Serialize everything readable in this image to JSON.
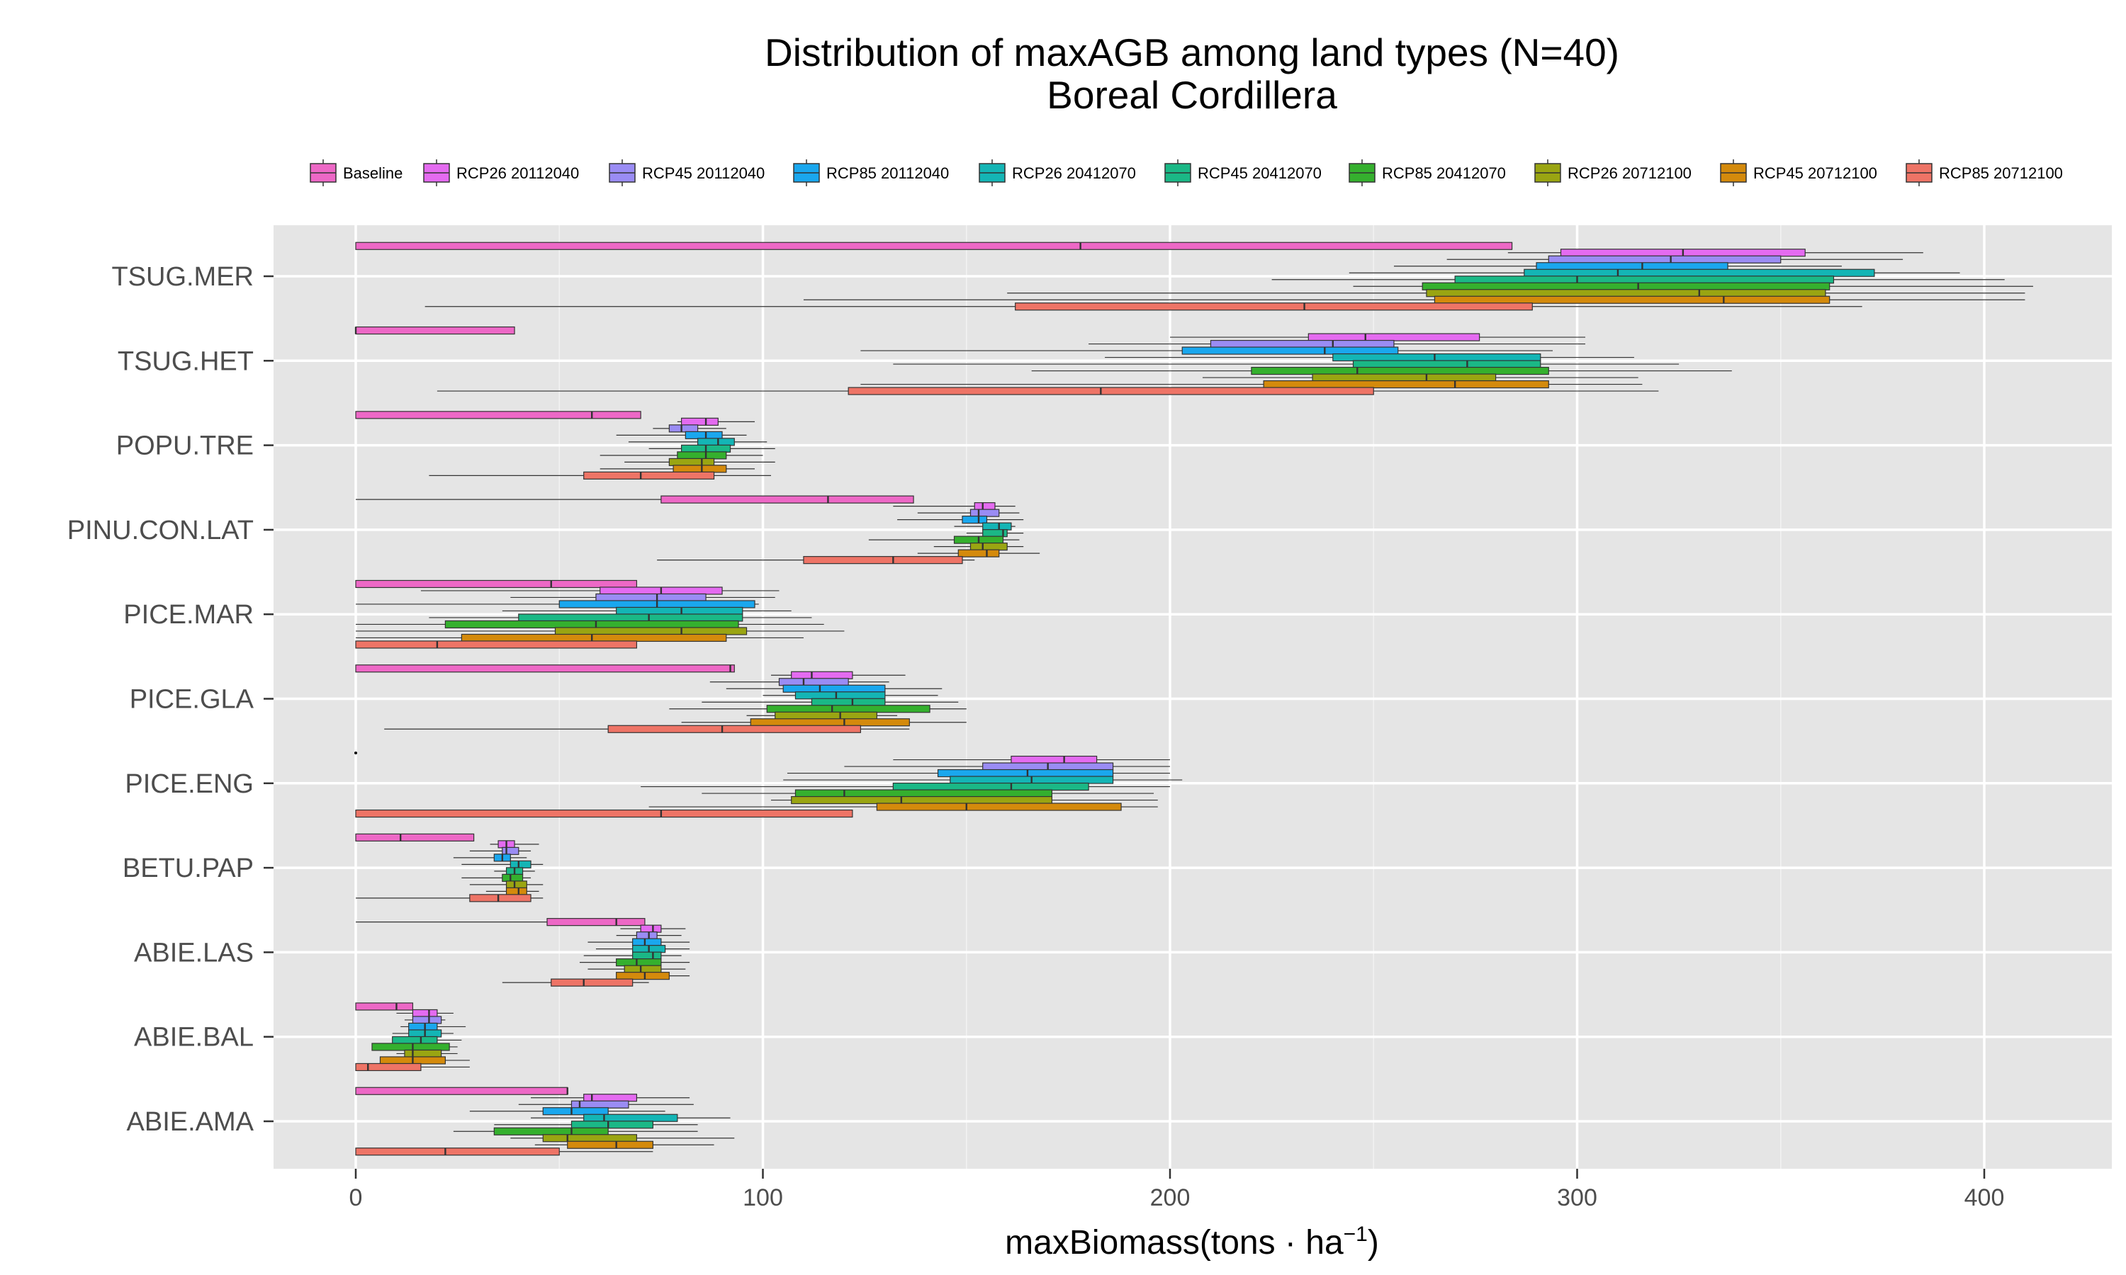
{
  "chart_data": {
    "type": "boxplot-horizontal",
    "title": "Distribution of maxAGB among land types (N=40)",
    "subtitle": "Boreal Cordillera",
    "xlabel": "maxBiomass(tons · ha",
    "xlabel_sup": "−1",
    "xlabel_close": ")",
    "xlim": [
      -20,
      431
    ],
    "xticks": [
      0,
      100,
      200,
      300,
      400
    ],
    "grid": true,
    "legend_position": "top",
    "series": [
      {
        "name": "Baseline",
        "color": "#ED68C6"
      },
      {
        "name": "RCP26 20112040",
        "color": "#E46BF0"
      },
      {
        "name": "RCP45 20112040",
        "color": "#9A8CF4"
      },
      {
        "name": "RCP85 20112040",
        "color": "#1AA7EE"
      },
      {
        "name": "RCP26 20412070",
        "color": "#14B5B5"
      },
      {
        "name": "RCP45 20412070",
        "color": "#1BB886"
      },
      {
        "name": "RCP85 20412070",
        "color": "#35B02E"
      },
      {
        "name": "RCP26 20712100",
        "color": "#9AA512"
      },
      {
        "name": "RCP45 20712100",
        "color": "#D48A0C"
      },
      {
        "name": "RCP85 20712100",
        "color": "#EE7466"
      }
    ],
    "categories": [
      "TSUG.MER",
      "TSUG.HET",
      "POPU.TRE",
      "PINU.CON.LAT",
      "PICE.MAR",
      "PICE.GLA",
      "PICE.ENG",
      "BETU.PAP",
      "ABIE.LAS",
      "ABIE.BAL",
      "ABIE.AMA"
    ],
    "boxes": [
      [
        [
          0,
          0,
          178,
          284,
          284
        ],
        [
          283,
          296,
          326,
          356,
          385
        ],
        [
          268,
          293,
          323,
          350,
          380
        ],
        [
          255,
          290,
          316,
          337,
          365
        ],
        [
          244,
          287,
          310,
          373,
          394
        ],
        [
          225,
          270,
          300,
          363,
          405
        ],
        [
          245,
          262,
          315,
          362,
          412
        ],
        [
          160,
          263,
          330,
          361,
          410
        ],
        [
          110,
          265,
          336,
          362,
          410
        ],
        [
          17,
          162,
          233,
          289,
          370
        ]
      ],
      [
        [
          0,
          0,
          0,
          39,
          39
        ],
        [
          200,
          234,
          248,
          276,
          302
        ],
        [
          180,
          210,
          240,
          255,
          302
        ],
        [
          124,
          203,
          238,
          256,
          294
        ],
        [
          184,
          240,
          265,
          291,
          314
        ],
        [
          132,
          245,
          273,
          291,
          325
        ],
        [
          166,
          220,
          246,
          293,
          338
        ],
        [
          208,
          235,
          263,
          280,
          315
        ],
        [
          124,
          223,
          270,
          293,
          316
        ],
        [
          20,
          121,
          183,
          250,
          320
        ]
      ],
      [
        [
          0,
          0,
          58,
          70,
          70
        ],
        [
          79,
          80,
          86,
          89,
          98
        ],
        [
          73,
          77,
          80,
          84,
          91
        ],
        [
          64,
          81,
          86,
          90,
          96
        ],
        [
          67,
          84,
          89,
          93,
          101
        ],
        [
          72,
          80,
          86,
          92,
          103
        ],
        [
          60,
          79,
          86,
          91,
          100
        ],
        [
          66,
          77,
          85,
          88,
          103
        ],
        [
          60,
          78,
          85,
          91,
          98
        ],
        [
          18,
          56,
          70,
          88,
          102
        ]
      ],
      [
        [
          0,
          75,
          116,
          137,
          137
        ],
        [
          132,
          152,
          154,
          157,
          162
        ],
        [
          138,
          151,
          153,
          158,
          163
        ],
        [
          133,
          149,
          153,
          155,
          164
        ],
        [
          147,
          154,
          158,
          161,
          162
        ],
        [
          150,
          154,
          159,
          160,
          164
        ],
        [
          126,
          147,
          153,
          159,
          163
        ],
        [
          142,
          151,
          154,
          160,
          164
        ],
        [
          138,
          148,
          155,
          158,
          168
        ],
        [
          74,
          110,
          132,
          149,
          152
        ]
      ],
      [
        [
          0,
          0,
          48,
          69,
          69
        ],
        [
          16,
          60,
          75,
          90,
          104
        ],
        [
          38,
          59,
          74,
          86,
          103
        ],
        [
          0,
          50,
          74,
          98,
          99
        ],
        [
          36,
          64,
          80,
          95,
          107
        ],
        [
          18,
          40,
          72,
          95,
          112
        ],
        [
          0,
          22,
          59,
          94,
          115
        ],
        [
          0,
          49,
          80,
          96,
          120
        ],
        [
          0,
          26,
          58,
          91,
          110
        ],
        [
          0,
          0,
          20,
          69,
          69
        ]
      ],
      [
        [
          0,
          0,
          92,
          93,
          93
        ],
        [
          102,
          107,
          112,
          122,
          135
        ],
        [
          87,
          104,
          110,
          121,
          131
        ],
        [
          91,
          105,
          114,
          130,
          144
        ],
        [
          100,
          108,
          118,
          130,
          143
        ],
        [
          85,
          112,
          122,
          130,
          148
        ],
        [
          77,
          101,
          117,
          141,
          150
        ],
        [
          96,
          103,
          119,
          128,
          133
        ],
        [
          80,
          97,
          120,
          136,
          150
        ],
        [
          7,
          62,
          90,
          124,
          136
        ]
      ],
      [
        [
          0,
          0,
          0,
          0,
          0
        ],
        [
          132,
          161,
          174,
          182,
          200
        ],
        [
          120,
          154,
          170,
          186,
          200
        ],
        [
          106,
          143,
          165,
          186,
          200
        ],
        [
          105,
          146,
          166,
          186,
          203
        ],
        [
          70,
          132,
          161,
          180,
          200
        ],
        [
          85,
          108,
          120,
          171,
          196
        ],
        [
          102,
          107,
          134,
          171,
          197
        ],
        [
          72,
          128,
          150,
          188,
          197
        ],
        [
          0,
          0,
          75,
          122,
          122
        ]
      ],
      [
        [
          0,
          0,
          11,
          29,
          29
        ],
        [
          33,
          35,
          37,
          39,
          45
        ],
        [
          28,
          36,
          37,
          40,
          43
        ],
        [
          24,
          34,
          36,
          38,
          42
        ],
        [
          26,
          38,
          40,
          43,
          46
        ],
        [
          34,
          37,
          39,
          41,
          44
        ],
        [
          26,
          36,
          38,
          41,
          43
        ],
        [
          28,
          37,
          39,
          42,
          46
        ],
        [
          32,
          37,
          40,
          42,
          45
        ],
        [
          0,
          28,
          35,
          43,
          46
        ]
      ],
      [
        [
          0,
          47,
          64,
          71,
          71
        ],
        [
          65,
          70,
          73,
          75,
          81
        ],
        [
          64,
          69,
          72,
          74,
          80
        ],
        [
          57,
          68,
          71,
          75,
          82
        ],
        [
          59,
          68,
          72,
          76,
          82
        ],
        [
          56,
          68,
          73,
          75,
          80
        ],
        [
          55,
          64,
          69,
          75,
          82
        ],
        [
          57,
          66,
          70,
          75,
          81
        ],
        [
          65,
          64,
          71,
          77,
          82
        ],
        [
          36,
          48,
          56,
          68,
          72
        ]
      ],
      [
        [
          0,
          0,
          10,
          14,
          14
        ],
        [
          10,
          14,
          18,
          20,
          24
        ],
        [
          12,
          14,
          18,
          21,
          22
        ],
        [
          11,
          13,
          17,
          20,
          27
        ],
        [
          9,
          13,
          17,
          21,
          24
        ],
        [
          11,
          9,
          16,
          20,
          26
        ],
        [
          7,
          4,
          14,
          23,
          25
        ],
        [
          10,
          12,
          14,
          21,
          25
        ],
        [
          11,
          6,
          14,
          22,
          28
        ],
        [
          0,
          0,
          3,
          16,
          28
        ]
      ],
      [
        [
          0,
          0,
          52,
          52,
          52
        ],
        [
          43,
          56,
          58,
          69,
          82
        ],
        [
          40,
          53,
          55,
          67,
          83
        ],
        [
          28,
          46,
          53,
          62,
          76
        ],
        [
          43,
          56,
          61,
          79,
          92
        ],
        [
          34,
          53,
          62,
          73,
          84
        ],
        [
          24,
          34,
          53,
          62,
          84
        ],
        [
          38,
          46,
          52,
          69,
          93
        ],
        [
          44,
          52,
          64,
          73,
          88
        ],
        [
          0,
          0,
          22,
          50,
          73
        ]
      ]
    ]
  }
}
